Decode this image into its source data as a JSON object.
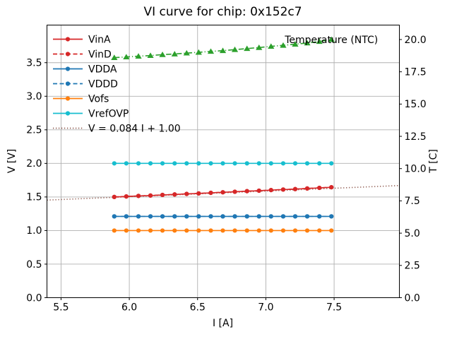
{
  "chart_data": {
    "type": "line",
    "title": "VI curve for chip: 0x152c7",
    "xlabel": "I [A]",
    "ylabel_left": "V [V]",
    "ylabel_right": "T [C]",
    "grid": true,
    "legend_position": "upper left",
    "xlim": [
      5.397,
      7.978
    ],
    "ylim_left": [
      0.0,
      4.06
    ],
    "ylim_right": [
      0.0,
      21.12
    ],
    "xticks": [
      5.5,
      6.0,
      6.5,
      7.0,
      7.5
    ],
    "yticks_left": [
      0.0,
      0.5,
      1.0,
      1.5,
      2.0,
      2.5,
      3.0,
      3.5
    ],
    "yticks_right": [
      0.0,
      2.5,
      5.0,
      7.5,
      10.0,
      12.5,
      15.0,
      17.5,
      20.0
    ],
    "x": [
      5.89,
      5.978,
      6.067,
      6.155,
      6.243,
      6.332,
      6.42,
      6.508,
      6.597,
      6.685,
      6.773,
      6.862,
      6.95,
      7.038,
      7.127,
      7.215,
      7.303,
      7.392,
      7.48
    ],
    "series": [
      {
        "name": "VinA",
        "axis": "left",
        "color": "#d62728",
        "style": "solid",
        "marker": "circle",
        "values": [
          1.5,
          1.507,
          1.515,
          1.521,
          1.53,
          1.537,
          1.545,
          1.552,
          1.561,
          1.569,
          1.577,
          1.586,
          1.593,
          1.602,
          1.61,
          1.617,
          1.626,
          1.635,
          1.644
        ]
      },
      {
        "name": "VinD",
        "axis": "left",
        "color": "#d62728",
        "style": "dashed",
        "marker": "circle",
        "values": [
          1.501,
          1.508,
          1.516,
          1.522,
          1.531,
          1.538,
          1.546,
          1.553,
          1.562,
          1.57,
          1.578,
          1.587,
          1.594,
          1.603,
          1.611,
          1.618,
          1.627,
          1.636,
          1.645
        ]
      },
      {
        "name": "VDDA",
        "axis": "left",
        "color": "#1f77b4",
        "style": "solid",
        "marker": "circle",
        "values": [
          1.21,
          1.21,
          1.21,
          1.21,
          1.21,
          1.21,
          1.21,
          1.21,
          1.21,
          1.21,
          1.21,
          1.21,
          1.21,
          1.21,
          1.21,
          1.21,
          1.21,
          1.21,
          1.21
        ]
      },
      {
        "name": "VDDD",
        "axis": "left",
        "color": "#1f77b4",
        "style": "dashed",
        "marker": "circle",
        "values": [
          1.211,
          1.211,
          1.211,
          1.211,
          1.211,
          1.211,
          1.211,
          1.211,
          1.211,
          1.211,
          1.211,
          1.211,
          1.211,
          1.211,
          1.211,
          1.211,
          1.211,
          1.211,
          1.211
        ]
      },
      {
        "name": "Vofs",
        "axis": "left",
        "color": "#ff7f0e",
        "style": "solid",
        "marker": "circle",
        "values": [
          1.0,
          1.0,
          1.0,
          1.0,
          1.0,
          1.0,
          1.0,
          1.0,
          1.0,
          1.0,
          1.0,
          1.0,
          1.0,
          1.0,
          1.0,
          1.0,
          1.0,
          1.0,
          1.0
        ]
      },
      {
        "name": "VrefOVP",
        "axis": "left",
        "color": "#17becf",
        "style": "solid",
        "marker": "circle",
        "values": [
          2.0,
          2.0,
          2.0,
          2.0,
          2.0,
          2.0,
          2.0,
          2.0,
          2.0,
          2.0,
          2.0,
          2.0,
          2.0,
          2.0,
          2.0,
          2.0,
          2.0,
          2.0,
          2.0
        ]
      },
      {
        "name": "Temperature (NTC)",
        "axis": "right",
        "color": "#2ca02c",
        "style": "dashdot",
        "marker": "triangle",
        "in_legend": false,
        "values": [
          18.6,
          18.65,
          18.71,
          18.76,
          18.83,
          18.88,
          18.95,
          19.01,
          19.08,
          19.14,
          19.22,
          19.3,
          19.38,
          19.47,
          19.55,
          19.64,
          19.73,
          19.85,
          20.0
        ]
      }
    ],
    "fit_line": {
      "label": "V = 0.084 I + 1.00",
      "slope": 0.084,
      "intercept": 1.0,
      "color": "#8c564b",
      "style": "dotted",
      "axis": "left"
    },
    "annotation": {
      "text": "Temperature (NTC)",
      "x": 7.48,
      "t": 19.99
    },
    "colors": {
      "grid": "#b0b0b0",
      "spine": "#000000",
      "text": "#000000",
      "background": "#ffffff"
    }
  }
}
